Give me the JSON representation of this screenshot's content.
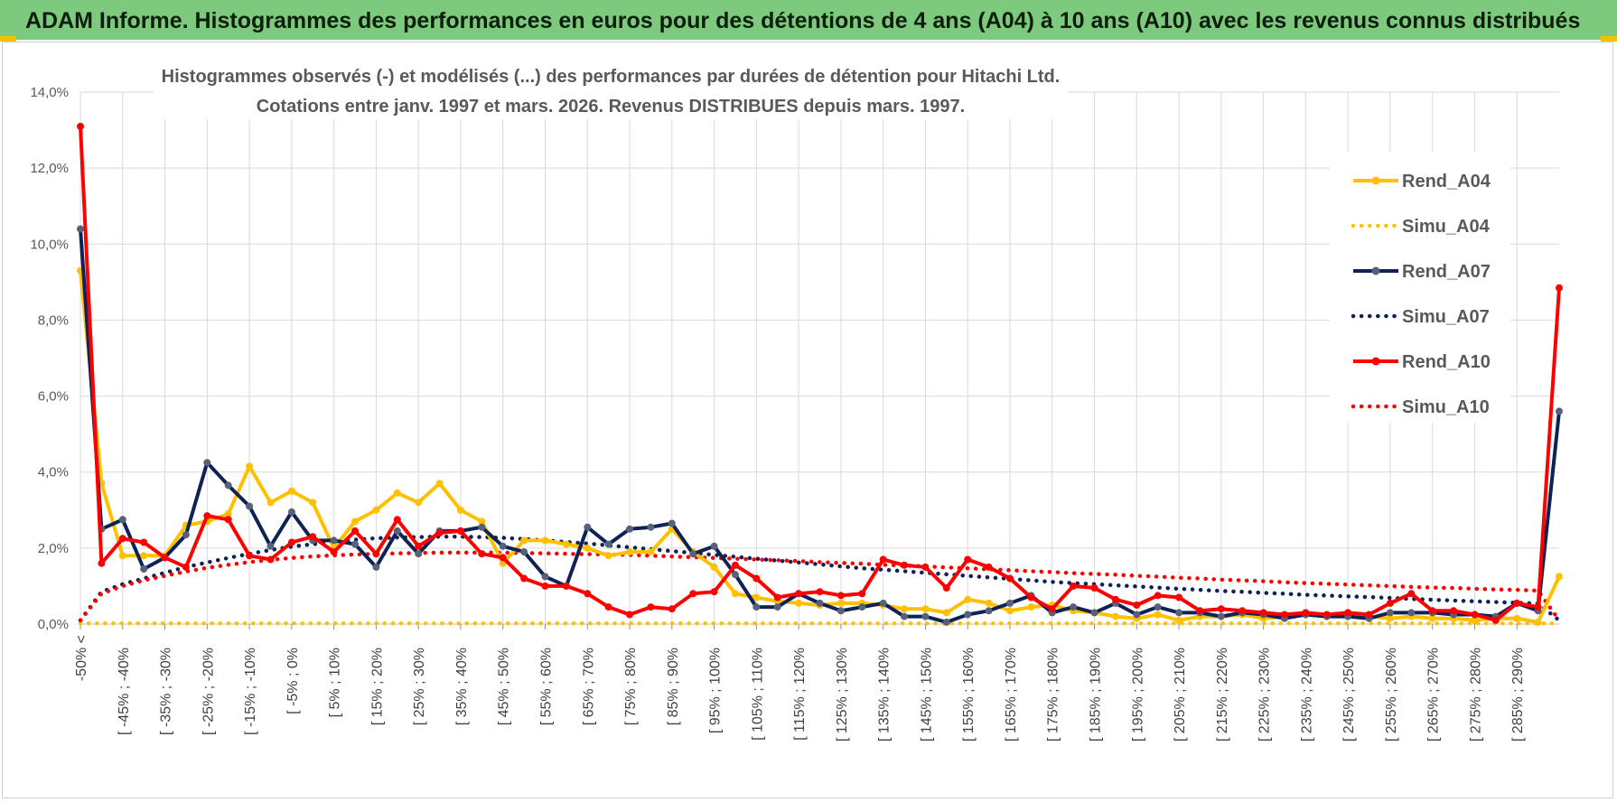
{
  "banner": {
    "title": "ADAM Informe. Histogrammes des performances en euros pour des détentions de 4 ans (A04) à 10 ans (A10) avec les revenus connus distribués"
  },
  "chart_data": {
    "type": "line",
    "title_lines": [
      "Histogrammes observés (-) et modélisés (...) des performances par durées de détention pour Hitachi Ltd.",
      "Cotations entre janv. 1997 et mars. 2026.  Revenus DISTRIBUES depuis mars. 1997."
    ],
    "ylim": [
      0,
      14
    ],
    "y_ticks": [
      "0,0%",
      "2,0%",
      "4,0%",
      "6,0%",
      "8,0%",
      "10,0%",
      "12,0%",
      "14,0%"
    ],
    "y_tick_values": [
      0,
      2,
      4,
      6,
      8,
      10,
      12,
      14
    ],
    "grid": true,
    "legend_position": "right",
    "x_tick_labels": [
      "-50% <",
      "[ -45% ; -40%",
      "[ -35% ; -30%",
      "[ -25% ; -20%",
      "[ -15% ; -10%",
      "[ -5% ; 0%",
      "[ 5% ; 10%",
      "[ 15% ; 20%",
      "[ 25% ; 30%",
      "[ 35% ; 40%",
      "[ 45% ; 50%",
      "[ 55% ; 60%",
      "[ 65% ; 70%",
      "[ 75% ; 80%",
      "[ 85% ; 90%",
      "[ 95% ; 100%",
      "[ 105% ; 110%",
      "[ 115% ; 120%",
      "[ 125% ; 130%",
      "[ 135% ; 140%",
      "[ 145% ; 150%",
      "[ 155% ; 160%",
      "[ 165% ; 170%",
      "[ 175% ; 180%",
      "[ 185% ; 190%",
      "[ 195% ; 200%",
      "[ 205% ; 210%",
      "[ 215% ; 220%",
      "[ 225% ; 230%",
      "[ 235% ; 240%",
      "[ 245% ; 250%",
      "[ 255% ; 260%",
      "[ 265% ; 270%",
      "[ 275% ; 280%",
      "[ 285% ; 290%"
    ],
    "series": [
      {
        "name": "Rend_A04",
        "style": "solid",
        "color": "#ffc000",
        "values": [
          9.3,
          3.7,
          1.8,
          1.8,
          1.8,
          2.6,
          2.7,
          2.9,
          4.15,
          3.2,
          3.5,
          3.2,
          2.0,
          2.7,
          3.0,
          3.45,
          3.2,
          3.7,
          3.0,
          2.7,
          1.6,
          2.2,
          2.2,
          2.1,
          2.0,
          1.8,
          1.9,
          1.9,
          2.5,
          1.9,
          1.5,
          0.8,
          0.7,
          0.6,
          0.55,
          0.5,
          0.55,
          0.55,
          0.5,
          0.4,
          0.4,
          0.3,
          0.65,
          0.55,
          0.35,
          0.45,
          0.5,
          0.35,
          0.3,
          0.2,
          0.15,
          0.25,
          0.1,
          0.2,
          0.2,
          0.25,
          0.15,
          0.2,
          0.25,
          0.2,
          0.25,
          0.2,
          0.15,
          0.2,
          0.15,
          0.15,
          0.1,
          0.15,
          0.15,
          0.05,
          1.25
        ]
      },
      {
        "name": "Simu_A04",
        "style": "dotted",
        "color": "#ffc000",
        "values": [
          0.02,
          0.02,
          0.02,
          0.02,
          0.02,
          0.02,
          0.02,
          0.02,
          0.02,
          0.02,
          0.02,
          0.02,
          0.02,
          0.02,
          0.02,
          0.02,
          0.02,
          0.02,
          0.02,
          0.02,
          0.02,
          0.02,
          0.02,
          0.02,
          0.02,
          0.02,
          0.02,
          0.02,
          0.02,
          0.02,
          0.02,
          0.02,
          0.02,
          0.02,
          0.02,
          0.02,
          0.02,
          0.02,
          0.02,
          0.02,
          0.02,
          0.02,
          0.02,
          0.02,
          0.02,
          0.02,
          0.02,
          0.02,
          0.02,
          0.02,
          0.02,
          0.02,
          0.02,
          0.02,
          0.02,
          0.02,
          0.02,
          0.02,
          0.02,
          0.02,
          0.02,
          0.02,
          0.02,
          0.02,
          0.02,
          0.02,
          0.02,
          0.02,
          0.02,
          0.02,
          0.02
        ]
      },
      {
        "name": "Rend_A07",
        "style": "solid",
        "color": "#0e2256",
        "values": [
          10.4,
          2.5,
          2.75,
          1.45,
          1.75,
          2.35,
          4.25,
          3.65,
          3.1,
          2.05,
          2.95,
          2.2,
          2.2,
          2.1,
          1.5,
          2.45,
          1.85,
          2.45,
          2.45,
          2.55,
          2.05,
          1.9,
          1.25,
          1.0,
          2.55,
          2.1,
          2.5,
          2.55,
          2.65,
          1.85,
          2.05,
          1.3,
          0.45,
          0.45,
          0.8,
          0.55,
          0.35,
          0.45,
          0.55,
          0.2,
          0.2,
          0.05,
          0.25,
          0.35,
          0.55,
          0.75,
          0.3,
          0.45,
          0.3,
          0.55,
          0.25,
          0.45,
          0.3,
          0.3,
          0.2,
          0.3,
          0.25,
          0.15,
          0.25,
          0.2,
          0.2,
          0.15,
          0.3,
          0.3,
          0.3,
          0.25,
          0.25,
          0.2,
          0.55,
          0.35,
          5.6
        ]
      },
      {
        "name": "Simu_A07",
        "style": "dotted",
        "color": "#0e2256",
        "values": [
          0.1,
          0.85,
          1.05,
          1.2,
          1.35,
          1.5,
          1.62,
          1.74,
          1.85,
          1.95,
          2.04,
          2.1,
          2.16,
          2.22,
          2.26,
          2.28,
          2.29,
          2.3,
          2.3,
          2.29,
          2.27,
          2.24,
          2.2,
          2.16,
          2.12,
          2.07,
          2.02,
          1.97,
          1.92,
          1.87,
          1.82,
          1.77,
          1.72,
          1.67,
          1.62,
          1.57,
          1.52,
          1.47,
          1.43,
          1.39,
          1.35,
          1.31,
          1.27,
          1.23,
          1.19,
          1.15,
          1.11,
          1.08,
          1.05,
          1.02,
          0.99,
          0.96,
          0.93,
          0.9,
          0.87,
          0.85,
          0.82,
          0.8,
          0.77,
          0.75,
          0.73,
          0.71,
          0.69,
          0.66,
          0.64,
          0.62,
          0.6,
          0.58,
          0.56,
          0.54,
          0.1
        ]
      },
      {
        "name": "Rend_A10",
        "style": "solid",
        "color": "#ff0000",
        "values": [
          13.1,
          1.6,
          2.25,
          2.15,
          1.75,
          1.5,
          2.85,
          2.75,
          1.8,
          1.7,
          2.15,
          2.3,
          1.9,
          2.45,
          1.85,
          2.75,
          2.05,
          2.4,
          2.45,
          1.85,
          1.75,
          1.2,
          1.0,
          1.0,
          0.8,
          0.45,
          0.25,
          0.45,
          0.4,
          0.8,
          0.85,
          1.55,
          1.2,
          0.7,
          0.8,
          0.85,
          0.75,
          0.8,
          1.7,
          1.55,
          1.5,
          0.95,
          1.7,
          1.5,
          1.2,
          0.7,
          0.4,
          1.0,
          0.95,
          0.65,
          0.5,
          0.75,
          0.7,
          0.35,
          0.4,
          0.35,
          0.3,
          0.25,
          0.3,
          0.25,
          0.3,
          0.25,
          0.55,
          0.8,
          0.35,
          0.35,
          0.25,
          0.1,
          0.55,
          0.45,
          8.85
        ]
      },
      {
        "name": "Simu_A10",
        "style": "dotted",
        "color": "#ff0000",
        "values": [
          0.1,
          0.8,
          1.0,
          1.15,
          1.27,
          1.38,
          1.48,
          1.56,
          1.63,
          1.69,
          1.74,
          1.78,
          1.81,
          1.83,
          1.85,
          1.86,
          1.87,
          1.88,
          1.88,
          1.88,
          1.88,
          1.87,
          1.86,
          1.85,
          1.84,
          1.83,
          1.82,
          1.8,
          1.78,
          1.76,
          1.74,
          1.72,
          1.7,
          1.68,
          1.66,
          1.63,
          1.61,
          1.59,
          1.56,
          1.54,
          1.52,
          1.49,
          1.47,
          1.44,
          1.42,
          1.39,
          1.37,
          1.34,
          1.32,
          1.3,
          1.27,
          1.25,
          1.22,
          1.2,
          1.17,
          1.15,
          1.13,
          1.1,
          1.08,
          1.06,
          1.04,
          1.02,
          1.0,
          0.98,
          0.96,
          0.95,
          0.93,
          0.91,
          0.9,
          0.88,
          0.1
        ]
      }
    ]
  }
}
